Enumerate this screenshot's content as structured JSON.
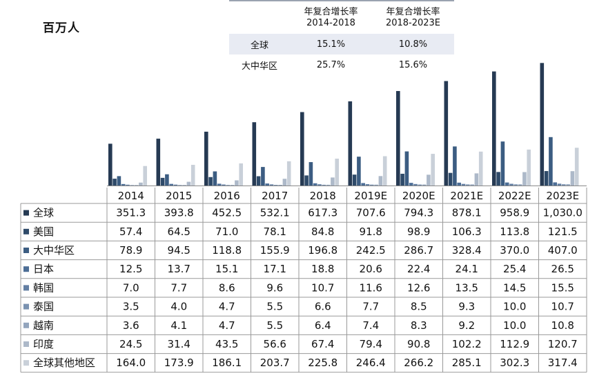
{
  "unit_label": "百万人",
  "cagr_table": {
    "headers": [
      "",
      "年复合增长率\n2014-2018",
      "年复合增长率\n2018-2023E"
    ],
    "rows": [
      {
        "label": "全球",
        "v1": "15.1%",
        "v2": "10.8%"
      },
      {
        "label": "大中华区",
        "v1": "25.7%",
        "v2": "15.6%"
      }
    ]
  },
  "chart_data": {
    "type": "bar",
    "title": "",
    "xlabel": "",
    "ylabel": "",
    "categories": [
      "2014",
      "2015",
      "2016",
      "2017",
      "2018",
      "2019E",
      "2020E",
      "2021E",
      "2022E",
      "2023E"
    ],
    "series": [
      {
        "name": "全球",
        "color": "#263a53",
        "values": [
          "351.3",
          "393.8",
          "452.5",
          "532.1",
          "617.3",
          "707.6",
          "794.3",
          "878.1",
          "958.9",
          "1,030.0"
        ]
      },
      {
        "name": "美国",
        "color": "#2e4a69",
        "values": [
          "57.4",
          "64.5",
          "71.0",
          "78.1",
          "84.8",
          "91.8",
          "98.9",
          "106.3",
          "113.8",
          "121.5"
        ]
      },
      {
        "name": "大中华区",
        "color": "#3c5d82",
        "values": [
          "78.9",
          "94.5",
          "118.8",
          "155.9",
          "196.8",
          "242.5",
          "286.7",
          "328.4",
          "370.0",
          "407.0"
        ]
      },
      {
        "name": "日本",
        "color": "#4d6e96",
        "values": [
          "12.5",
          "13.7",
          "15.1",
          "17.1",
          "18.8",
          "20.6",
          "22.4",
          "24.1",
          "25.4",
          "26.5"
        ]
      },
      {
        "name": "韩国",
        "color": "#637fa3",
        "values": [
          "7.0",
          "7.7",
          "8.6",
          "9.6",
          "10.7",
          "11.6",
          "12.6",
          "13.5",
          "14.5",
          "15.5"
        ]
      },
      {
        "name": "泰国",
        "color": "#7a92b1",
        "values": [
          "3.5",
          "4.0",
          "4.7",
          "5.5",
          "6.6",
          "7.7",
          "8.5",
          "9.3",
          "10.0",
          "10.7"
        ]
      },
      {
        "name": "越南",
        "color": "#93a5bd",
        "values": [
          "3.6",
          "4.1",
          "4.7",
          "5.5",
          "6.4",
          "7.4",
          "8.3",
          "9.2",
          "10.0",
          "10.8"
        ]
      },
      {
        "name": "印度",
        "color": "#adb9c9",
        "values": [
          "24.5",
          "31.4",
          "43.5",
          "56.6",
          "67.4",
          "79.4",
          "90.8",
          "102.2",
          "112.9",
          "120.7"
        ]
      },
      {
        "name": "全球其他地区",
        "color": "#c9d0d9",
        "values": [
          "164.0",
          "173.9",
          "186.1",
          "203.7",
          "225.8",
          "246.4",
          "266.2",
          "285.1",
          "302.3",
          "317.4"
        ]
      }
    ]
  }
}
